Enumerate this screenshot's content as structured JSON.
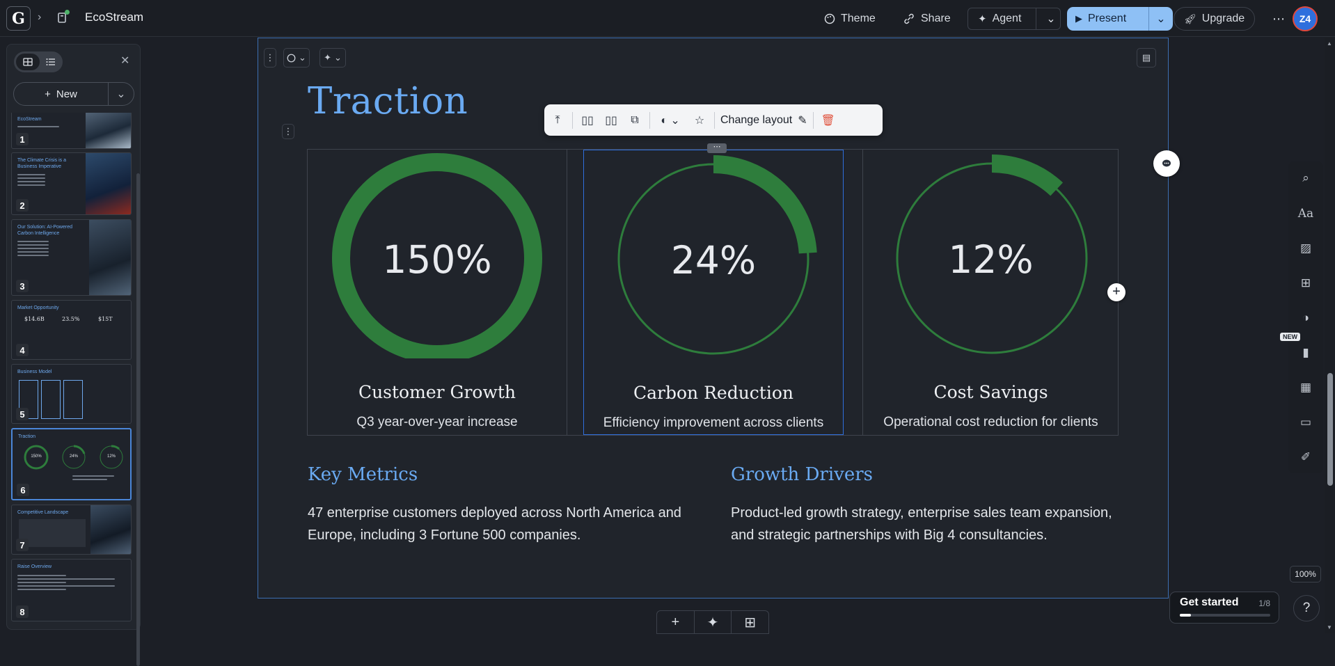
{
  "app": {
    "doc_title": "EcoStream",
    "logo_letter": "G",
    "avatar_initials": "Z4"
  },
  "toolbar": {
    "theme_label": "Theme",
    "share_label": "Share",
    "agent_label": "Agent",
    "present_label": "Present",
    "upgrade_label": "Upgrade"
  },
  "sidebar": {
    "new_label": "New",
    "slides": [
      {
        "num": "1",
        "title": "EcoStream"
      },
      {
        "num": "2",
        "title": "The Climate Crisis is a Business Imperative"
      },
      {
        "num": "3",
        "title": "Our Solution: AI-Powered Carbon Intelligence"
      },
      {
        "num": "4",
        "title": "Market Opportunity",
        "stats": [
          "$14.6B",
          "23.5%",
          "$15T"
        ]
      },
      {
        "num": "5",
        "title": "Business Model"
      },
      {
        "num": "6",
        "title": "Traction",
        "stats": [
          "150%",
          "24%",
          "12%"
        ]
      },
      {
        "num": "7",
        "title": "Competitive Landscape"
      },
      {
        "num": "8",
        "title": "Raise Overview"
      }
    ]
  },
  "slide": {
    "title": "Traction",
    "floating_toolbar": {
      "change_layout_label": "Change layout"
    },
    "metrics": [
      {
        "value_label": "150%",
        "value": 150,
        "title": "Customer Growth",
        "subtitle": "Q3 year-over-year increase"
      },
      {
        "value_label": "24%",
        "value": 24,
        "title": "Carbon Reduction",
        "subtitle": "Efficiency improvement across clients"
      },
      {
        "value_label": "12%",
        "value": 12,
        "title": "Cost Savings",
        "subtitle": "Operational cost reduction for clients"
      }
    ],
    "key_metrics": {
      "heading": "Key Metrics",
      "body": "47 enterprise customers deployed across North America and Europe, including 3 Fortune 500 companies."
    },
    "growth_drivers": {
      "heading": "Growth Drivers",
      "body": "Product-led growth strategy, enterprise sales team expansion, and strategic partnerships with Big 4 consultancies."
    }
  },
  "right_rail": {
    "new_badge": "NEW",
    "zoom": "100%"
  },
  "get_started": {
    "label": "Get started",
    "progress_label": "1/8",
    "progress": 0.125
  },
  "colors": {
    "accent_blue": "#6aaaf2",
    "ring_green": "#2e7d3c",
    "present_bg": "#8ec0f5"
  }
}
